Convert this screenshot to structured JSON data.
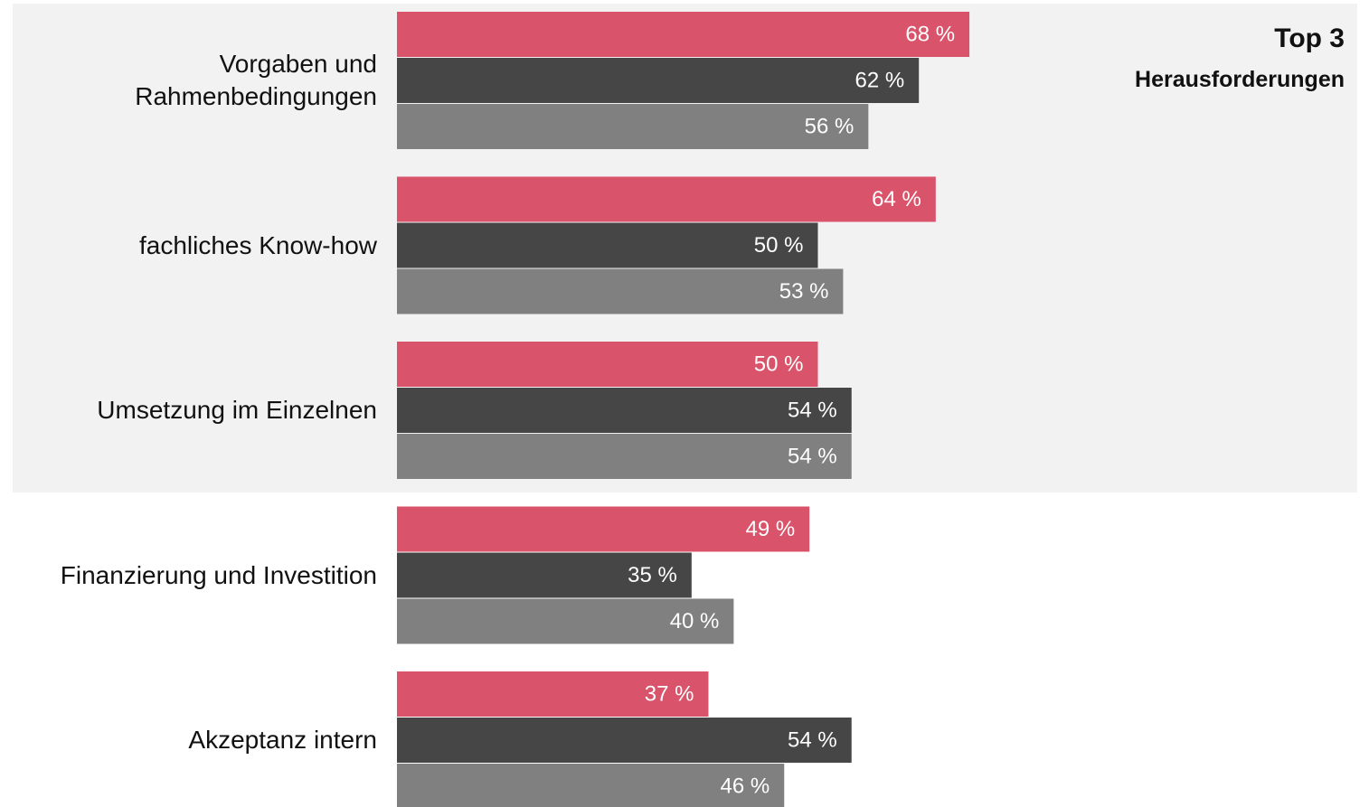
{
  "chart_data": {
    "type": "hbar",
    "annotation": {
      "title": "Top 3",
      "subtitle": "Herausforderungen"
    },
    "categories": [
      "Vorgaben und\nRahmenbedingungen",
      "fachliches Know-how",
      "Umsetzung im Einzelnen",
      "Finanzierung und Investition",
      "Akzeptanz intern"
    ],
    "series": [
      {
        "color": "#d9536a",
        "values": [
          68,
          64,
          50,
          49,
          37
        ],
        "value_labels": [
          "68 %",
          "64 %",
          "50 %",
          "49 %",
          "37 %"
        ]
      },
      {
        "color": "#464646",
        "values": [
          62,
          50,
          54,
          35,
          54
        ],
        "value_labels": [
          "62 %",
          "50 %",
          "54 %",
          "35 %",
          "54 %"
        ]
      },
      {
        "color": "#808080",
        "values": [
          56,
          53,
          54,
          40,
          46
        ],
        "value_labels": [
          "56 %",
          "53 %",
          "54 %",
          "40 %",
          "46 %"
        ]
      }
    ]
  }
}
